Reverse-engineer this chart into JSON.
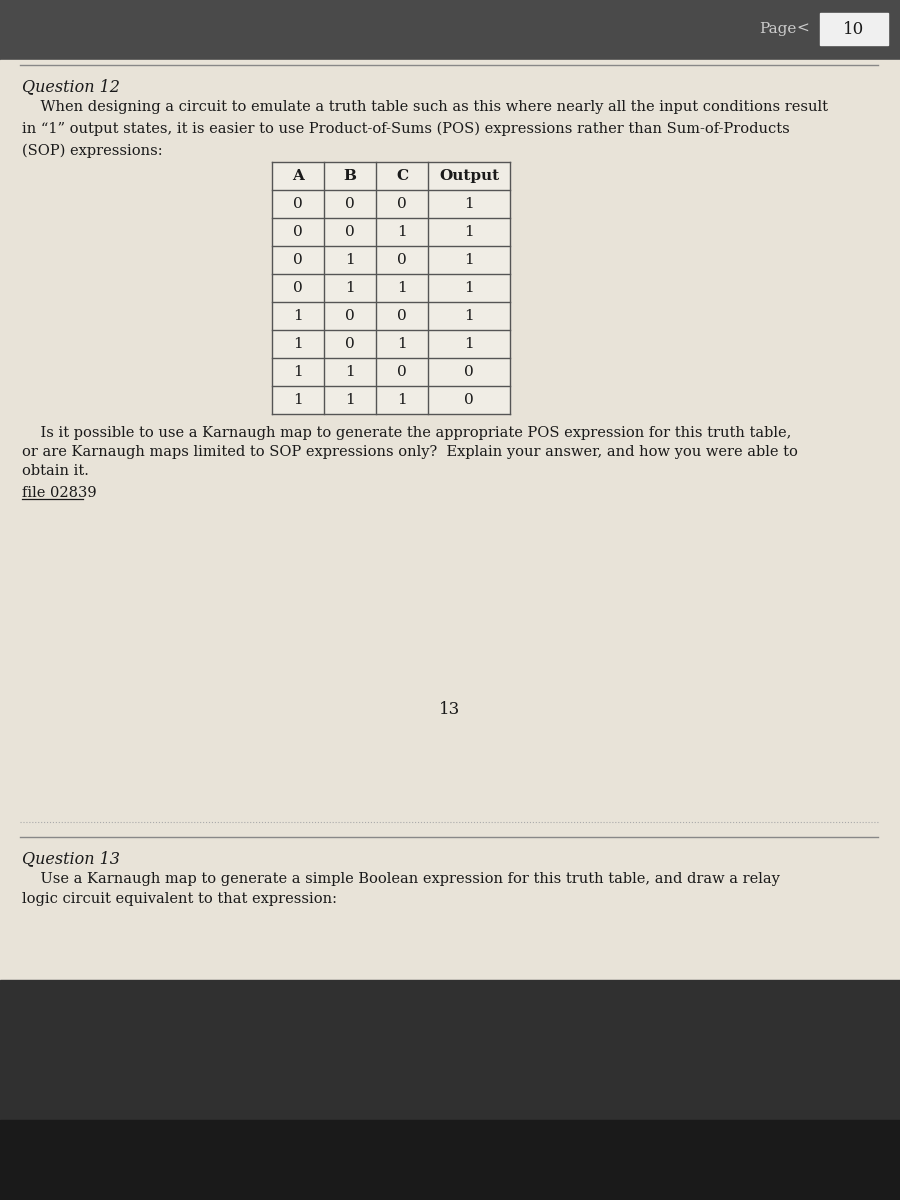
{
  "page_number": "10",
  "question12_title": "Question 12",
  "question12_text1": "    When designing a circuit to emulate a truth table such as this where nearly all the input conditions result",
  "question12_text2": "in “1” output states, it is easier to use Product-of-Sums (POS) expressions rather than Sum-of-Products",
  "question12_text3": "(SOP) expressions:",
  "table_headers": [
    "A",
    "B",
    "C",
    "Output"
  ],
  "table_data": [
    [
      0,
      0,
      0,
      1
    ],
    [
      0,
      0,
      1,
      1
    ],
    [
      0,
      1,
      0,
      1
    ],
    [
      0,
      1,
      1,
      1
    ],
    [
      1,
      0,
      0,
      1
    ],
    [
      1,
      0,
      1,
      1
    ],
    [
      1,
      1,
      0,
      0
    ],
    [
      1,
      1,
      1,
      0
    ]
  ],
  "question12_text4": "    Is it possible to use a Karnaugh map to generate the appropriate POS expression for this truth table,",
  "question12_text5": "or are Karnaugh maps limited to SOP expressions only?  Explain your answer, and how you were able to",
  "question12_text6": "obtain it.",
  "file_ref": "file 02839",
  "page_center_number": "13",
  "question13_title": "Question 13",
  "question13_text1": "    Use a Karnaugh map to generate a simple Boolean expression for this truth table, and draw a relay",
  "question13_text2": "logic circuit equivalent to that expression:",
  "bg_dark": "#4a4a4a",
  "bg_page": "#e8e3d8",
  "bg_bottom_dark": "#303030",
  "bg_very_bottom": "#1a1a1a",
  "text_color": "#1a1a1a",
  "table_line_color": "#555555",
  "page_btn_color": "#f0f0f0",
  "dotted_line_color": "#aaaaaa",
  "separator_color": "#888888"
}
